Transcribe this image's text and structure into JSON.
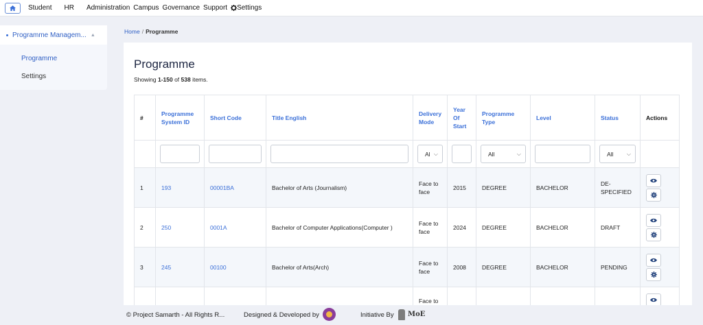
{
  "topnav": {
    "items": [
      "Student",
      "HR",
      "Administration",
      "Campus",
      "Governance",
      "Support"
    ],
    "settings_label": "Settings"
  },
  "sidebar": {
    "header": "Programme Managem...",
    "links": [
      "Programme",
      "Settings"
    ]
  },
  "breadcrumb": {
    "home": "Home",
    "separator": "/",
    "current": "Programme"
  },
  "main": {
    "title": "Programme",
    "summary": {
      "prefix": "Showing ",
      "range": "1-150",
      "of": " of ",
      "total": "538",
      "suffix": " items."
    }
  },
  "table": {
    "headers": {
      "index": "#",
      "system_id": "Programme System ID",
      "short_code": "Short Code",
      "title": "Title English",
      "delivery": "Delivery Mode",
      "year": "Year Of Start",
      "type": "Programme Type",
      "level": "Level",
      "status": "Status",
      "actions": "Actions"
    },
    "filters": {
      "delivery": "Al",
      "type": "All",
      "status": "All"
    },
    "rows": [
      {
        "index": "1",
        "system_id": "193",
        "short_code": "00001BA",
        "title": "Bachelor of Arts (Journalism)",
        "delivery": "Face to face",
        "year": "2015",
        "type": "DEGREE",
        "level": "BACHELOR",
        "status": "DE-SPECIFIED"
      },
      {
        "index": "2",
        "system_id": "250",
        "short_code": "0001A",
        "title": "Bachelor of Computer Applications(Computer )",
        "delivery": "Face to face",
        "year": "2024",
        "type": "DEGREE",
        "level": "BACHELOR",
        "status": "DRAFT"
      },
      {
        "index": "3",
        "system_id": "245",
        "short_code": "00100",
        "title": "Bachelor of Arts(Arch)",
        "delivery": "Face to face",
        "year": "2008",
        "type": "DEGREE",
        "level": "BACHELOR",
        "status": "PENDING"
      },
      {
        "index": "",
        "system_id": "",
        "short_code": "",
        "title": "",
        "delivery": "Face to",
        "year": "",
        "type": "",
        "level": "",
        "status": ""
      }
    ]
  },
  "footer": {
    "copyright": "© Project Samarth - All Rights R...",
    "designed": "Designed & Developed by",
    "initiative": "Initiative By",
    "moe": "MoE"
  },
  "colors": {
    "accent": "#3a6fd8",
    "title": "#1c2541",
    "background": "#eef0f6"
  }
}
